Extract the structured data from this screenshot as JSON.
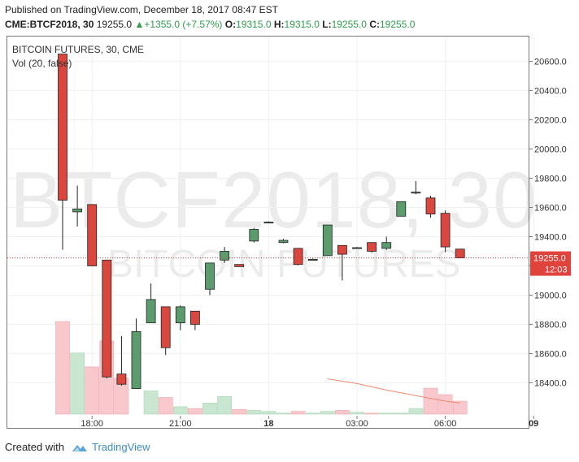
{
  "header": {
    "published": "Published on TradingView.com, December 18, 2017 08:47 EST",
    "symbol": "CME:BTCF2018, 30",
    "last": "19255.0",
    "change": "+1355.0 (+7.57%)",
    "o_label": "O:",
    "o_value": "19315.0",
    "h_label": "H:",
    "h_value": "19315.0",
    "l_label": "L:",
    "l_value": "19255.0",
    "c_label": "C:",
    "c_value": "19255.0"
  },
  "legend": {
    "title": "BITCOIN FUTURES, 30, CME",
    "volume": "Vol (20, false)"
  },
  "watermark": {
    "symbol": "BTCF2018, 30",
    "name": "BITCOIN FUTURES"
  },
  "price_tag": {
    "price": "19255.0",
    "countdown": "12:03"
  },
  "footer": {
    "created_with": "Created with",
    "brand": "TradingView"
  },
  "colors": {
    "up": "#5b9c6d",
    "down": "#d9473f",
    "vol_up": "#c8e6d0",
    "vol_down": "#f8c8cc",
    "ma_line": "#ef8a6d",
    "price_tag": "#e0423c"
  },
  "chart_data": {
    "type": "candlestick",
    "x_ticks": [
      "18:00",
      "21:00",
      "18",
      "03:00",
      "06:00",
      "09"
    ],
    "y_ticks": [
      18400,
      18600,
      18800,
      19000,
      19200,
      19400,
      19600,
      19800,
      20000,
      20200,
      20400,
      20600
    ],
    "y_tick_labels": [
      "18400.0",
      "18600.0",
      "18800.0",
      "19000.0",
      "19200.0",
      "19400.0",
      "19600.0",
      "19800.0",
      "20000.0",
      "20200.0",
      "20400.0",
      "20600.0"
    ],
    "ylim": [
      18180,
      20770
    ],
    "bar_interval_minutes": 30,
    "candles": [
      {
        "t": "17:00",
        "o": 20650,
        "h": 20650,
        "l": 19310,
        "c": 19650
      },
      {
        "t": "17:30",
        "o": 19570,
        "h": 19750,
        "l": 19470,
        "c": 19590
      },
      {
        "t": "18:00",
        "o": 19620,
        "h": 19620,
        "l": 19200,
        "c": 19200
      },
      {
        "t": "18:30",
        "o": 19240,
        "h": 19240,
        "l": 18430,
        "c": 18440
      },
      {
        "t": "19:00",
        "o": 18460,
        "h": 18720,
        "l": 18380,
        "c": 18390
      },
      {
        "t": "19:30",
        "o": 18360,
        "h": 18840,
        "l": 18360,
        "c": 18750
      },
      {
        "t": "20:00",
        "o": 18810,
        "h": 19080,
        "l": 18810,
        "c": 18970
      },
      {
        "t": "20:30",
        "o": 18920,
        "h": 18920,
        "l": 18590,
        "c": 18640
      },
      {
        "t": "21:00",
        "o": 18810,
        "h": 18930,
        "l": 18760,
        "c": 18920
      },
      {
        "t": "21:30",
        "o": 18890,
        "h": 18890,
        "l": 18760,
        "c": 18800
      },
      {
        "t": "22:00",
        "o": 19040,
        "h": 19220,
        "l": 19000,
        "c": 19220
      },
      {
        "t": "22:30",
        "o": 19240,
        "h": 19330,
        "l": 19220,
        "c": 19300
      },
      {
        "t": "23:00",
        "o": 19210,
        "h": 19210,
        "l": 19195,
        "c": 19195
      },
      {
        "t": "23:30",
        "o": 19370,
        "h": 19460,
        "l": 19360,
        "c": 19450
      },
      {
        "t": "00:00",
        "o": 19500,
        "h": 19505,
        "l": 19495,
        "c": 19500
      },
      {
        "t": "00:30",
        "o": 19360,
        "h": 19385,
        "l": 19355,
        "c": 19375
      },
      {
        "t": "01:00",
        "o": 19320,
        "h": 19320,
        "l": 19205,
        "c": 19210
      },
      {
        "t": "01:30",
        "o": 19245,
        "h": 19250,
        "l": 19240,
        "c": 19245
      },
      {
        "t": "02:00",
        "o": 19270,
        "h": 19480,
        "l": 19270,
        "c": 19480
      },
      {
        "t": "02:30",
        "o": 19340,
        "h": 19340,
        "l": 19100,
        "c": 19280
      },
      {
        "t": "03:00",
        "o": 19325,
        "h": 19330,
        "l": 19320,
        "c": 19325
      },
      {
        "t": "03:30",
        "o": 19360,
        "h": 19360,
        "l": 19290,
        "c": 19300
      },
      {
        "t": "04:00",
        "o": 19320,
        "h": 19400,
        "l": 19310,
        "c": 19360
      },
      {
        "t": "04:30",
        "o": 19540,
        "h": 19640,
        "l": 19540,
        "c": 19640
      },
      {
        "t": "05:00",
        "o": 19700,
        "h": 19780,
        "l": 19690,
        "c": 19705
      },
      {
        "t": "05:30",
        "o": 19665,
        "h": 19680,
        "l": 19530,
        "c": 19555
      },
      {
        "t": "06:00",
        "o": 19560,
        "h": 19580,
        "l": 19295,
        "c": 19330
      },
      {
        "t": "06:30",
        "o": 19315,
        "h": 19315,
        "l": 19255,
        "c": 19255
      }
    ],
    "volume": {
      "scale_max": 100,
      "values": [
        100,
        66,
        51,
        79,
        39,
        0,
        25,
        18,
        8,
        6,
        12,
        19,
        5,
        4,
        3,
        1,
        3,
        1,
        3,
        4,
        2,
        1,
        1,
        1,
        6,
        28,
        21,
        14
      ],
      "ma": [
        {
          "t": "02:00",
          "v": 38
        },
        {
          "t": "03:00",
          "v": 33
        },
        {
          "t": "04:00",
          "v": 26
        },
        {
          "t": "05:00",
          "v": 20
        },
        {
          "t": "06:00",
          "v": 14
        },
        {
          "t": "06:30",
          "v": 12
        }
      ]
    },
    "last_price": 19255,
    "grid": true
  }
}
